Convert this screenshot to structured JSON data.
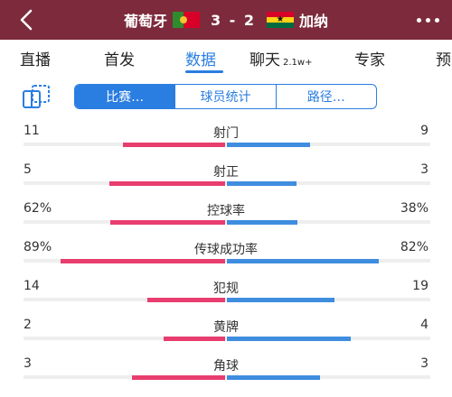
{
  "header": {
    "home_team": "葡萄牙",
    "away_team": "加纳",
    "score": "3 - 2"
  },
  "tabs": [
    {
      "label": "直播",
      "badge": ""
    },
    {
      "label": "首发",
      "badge": ""
    },
    {
      "label": "数据",
      "badge": ""
    },
    {
      "label": "聊天",
      "badge": "2.1w+"
    },
    {
      "label": "专家",
      "badge": ""
    },
    {
      "label": "预",
      "badge": ""
    }
  ],
  "active_tab": "数据",
  "segments": [
    "比赛…",
    "球员统计",
    "路径…"
  ],
  "colors": {
    "header_bg": "#7d2b3c",
    "accent": "#2a7de1",
    "home_bar": "#e83d6f",
    "away_bar": "#3f8ddf"
  },
  "stats": [
    {
      "label": "射门",
      "home": "11",
      "away": "9",
      "home_share": 0.55,
      "away_share": 0.45
    },
    {
      "label": "射正",
      "home": "5",
      "away": "3",
      "home_share": 0.625,
      "away_share": 0.375
    },
    {
      "label": "控球率",
      "home": "62%",
      "away": "38%",
      "home_share": 0.62,
      "away_share": 0.38
    },
    {
      "label": "传球成功率",
      "home": "89%",
      "away": "82%",
      "home_share": 0.89,
      "away_share": 0.82
    },
    {
      "label": "犯规",
      "home": "14",
      "away": "19",
      "home_share": 0.42,
      "away_share": 0.58
    },
    {
      "label": "黄牌",
      "home": "2",
      "away": "4",
      "home_share": 0.33,
      "away_share": 0.67
    },
    {
      "label": "角球",
      "home": "3",
      "away": "3",
      "home_share": 0.5,
      "away_share": 0.5
    }
  ]
}
